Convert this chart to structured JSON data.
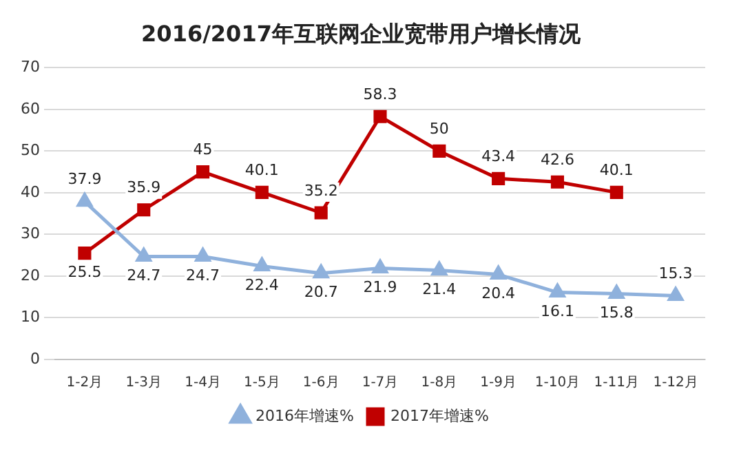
{
  "chart_data": {
    "type": "line",
    "title": "2016/2017年互联网企业宽带用户增长情况",
    "categories": [
      "1-2月",
      "1-3月",
      "1-4月",
      "1-5月",
      "1-6月",
      "1-7月",
      "1-8月",
      "1-9月",
      "1-10月",
      "1-11月",
      "1-12月"
    ],
    "series": [
      {
        "name": "2016年增速%",
        "color": "#8fb1dc",
        "marker": "triangle",
        "values": [
          37.9,
          24.7,
          24.7,
          22.4,
          20.7,
          21.9,
          21.4,
          20.4,
          16.1,
          15.8,
          15.3
        ]
      },
      {
        "name": "2017年增速%",
        "color": "#c00000",
        "marker": "square",
        "values": [
          25.5,
          35.9,
          45,
          40.1,
          35.2,
          58.3,
          50,
          43.4,
          42.6,
          40.1,
          null
        ]
      }
    ],
    "ylim": [
      0,
      70
    ],
    "yticks": [
      0,
      10,
      20,
      30,
      40,
      50,
      60,
      70
    ],
    "grid": "y",
    "legend": "bottom",
    "data_labels": true
  }
}
